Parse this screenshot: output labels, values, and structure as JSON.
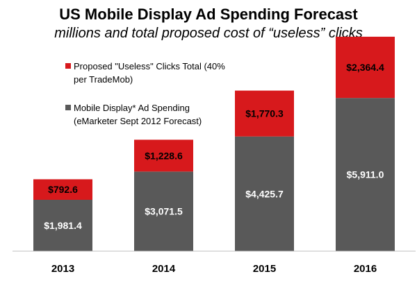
{
  "chart_data": {
    "type": "bar",
    "stacked": true,
    "title": "US Mobile Display Ad Spending Forecast",
    "subtitle": "millions and total proposed cost of “useless” clicks",
    "xlabel": "",
    "ylabel": "",
    "ylim": [
      0,
      8300
    ],
    "grid": false,
    "legend_position": "top-left",
    "categories": [
      "2013",
      "2014",
      "2015",
      "2016"
    ],
    "series": [
      {
        "name": "Mobile Display* Ad Spending (eMarketer Sept 2012 Forecast)",
        "color": "#595959",
        "values": [
          1981.4,
          3071.5,
          4425.7,
          5911.0
        ],
        "labels": [
          "$1,981.4",
          "$3,071.5",
          "$4,425.7",
          "$5,911.0"
        ],
        "label_color": "#ffffff"
      },
      {
        "name": "Proposed \"Useless\" Clicks Total (40% per TradeMob)",
        "color": "#d7191c",
        "values": [
          792.6,
          1228.6,
          1770.3,
          2364.4
        ],
        "labels": [
          "$792.6",
          "$1,228.6",
          "$1,770.3",
          "$2,364.4"
        ],
        "label_color": "#000000"
      }
    ]
  },
  "legend": {
    "useless_line1": "Proposed \"Useless\" Clicks Total (40%",
    "useless_line2": "per TradeMob)",
    "spend_line1": "Mobile Display* Ad Spending",
    "spend_line2": "(eMarketer Sept 2012 Forecast)"
  },
  "colors": {
    "spend": "#595959",
    "useless": "#d7191c",
    "axis": "#bfbfbf"
  }
}
